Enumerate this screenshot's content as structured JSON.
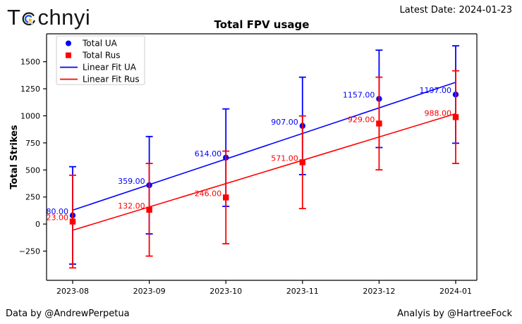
{
  "header": {
    "logo": {
      "prefix": "T",
      "suffix": "chnyi",
      "icon": "click-cursor-icon",
      "icon_colors": {
        "outer_ring": "#161616",
        "inner_ring": "#1f5de8",
        "cursor": "#f0b90b"
      }
    },
    "latest_date": "Latest Date: 2024-01-23"
  },
  "footer": {
    "left": "Data by @AndrewPerpetua",
    "right": "Analyis by @HartreeFock"
  },
  "chart_data": {
    "type": "scatter",
    "title": "Total FPV usage",
    "xlabel": "",
    "ylabel": "Total Strikes",
    "categories": [
      "2023-08",
      "2023-09",
      "2023-10",
      "2023-11",
      "2023-12",
      "2024-01"
    ],
    "series": [
      {
        "name": "Total UA",
        "color": "#0000ff",
        "marker": "circle",
        "values": [
          80,
          359,
          614,
          907,
          1157,
          1197
        ],
        "value_labels": [
          "80.00",
          "359.00",
          "614.00",
          "907.00",
          "1157.00",
          "1197.00"
        ],
        "error": 450,
        "fit_label": "Linear Fit UA"
      },
      {
        "name": "Total Rus",
        "color": "#ff0000",
        "marker": "square",
        "values": [
          23,
          132,
          246,
          571,
          929,
          988
        ],
        "value_labels": [
          "23.00",
          "132.00",
          "246.00",
          "571.00",
          "929.00",
          "988.00"
        ],
        "error": 428,
        "fit_label": "Linear Fit Rus"
      }
    ],
    "legend": [
      "Total UA",
      "Total Rus",
      "Linear Fit UA",
      "Linear Fit Rus"
    ],
    "legend_position": "upper left",
    "y_ticks": [
      -250,
      0,
      250,
      500,
      750,
      1000,
      1250,
      1500
    ],
    "ylim": [
      -520,
      1758
    ],
    "grid": false,
    "error_bars": true,
    "fit": "linear least squares per series, drawn across full category range",
    "annotation_note": "each data point labeled with its value to 2 decimal places, left of marker"
  }
}
